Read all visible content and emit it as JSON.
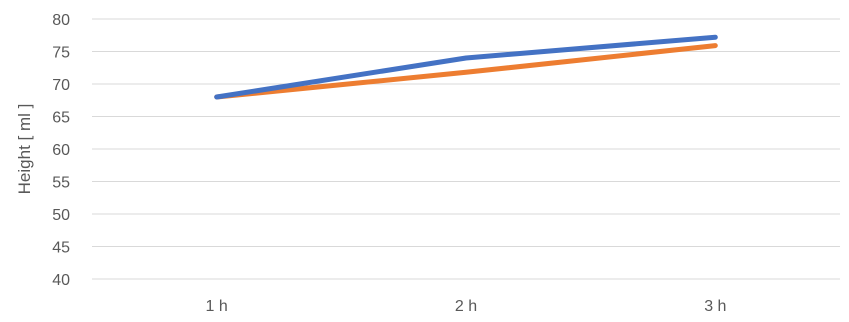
{
  "chart_data": {
    "type": "line",
    "title": "",
    "xlabel": "",
    "ylabel": "Height [ ml ]",
    "categories": [
      "1 h",
      "2 h",
      "3 h"
    ],
    "ylim": [
      40,
      80
    ],
    "yticks": [
      40,
      45,
      50,
      55,
      60,
      65,
      70,
      75,
      80
    ],
    "grid": true,
    "legend": "none",
    "series": [
      {
        "values": [
          68,
          74,
          77.2
        ],
        "color": "#4472c4"
      },
      {
        "values": [
          68,
          71.8,
          75.9
        ],
        "color": "#ed7d31"
      }
    ]
  }
}
